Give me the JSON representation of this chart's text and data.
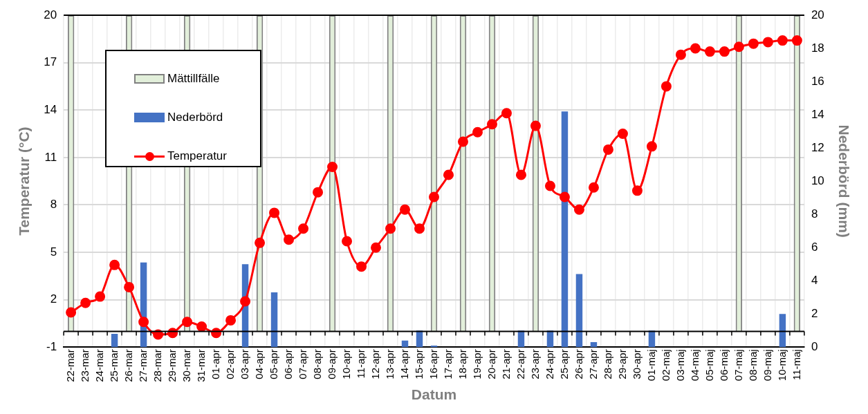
{
  "chart_data": {
    "type": "bar",
    "xlabel": "Datum",
    "ylabel": "Temperatur (°C)",
    "y2label": "Nederbörd (mm)",
    "categories": [
      "22-mar",
      "23-mar",
      "24-mar",
      "25-mar",
      "26-mar",
      "27-mar",
      "28-mar",
      "29-mar",
      "30-mar",
      "31-mar",
      "01-apr",
      "02-apr",
      "03-apr",
      "04-apr",
      "05-apr",
      "06-apr",
      "07-apr",
      "08-apr",
      "09-apr",
      "10-apr",
      "11-apr",
      "12-apr",
      "13-apr",
      "14-apr",
      "15-apr",
      "16-apr",
      "17-apr",
      "18-apr",
      "19-apr",
      "20-apr",
      "21-apr",
      "22-apr",
      "23-apr",
      "24-apr",
      "25-apr",
      "26-apr",
      "27-apr",
      "28-apr",
      "29-apr",
      "30-apr",
      "01-maj",
      "02-maj",
      "03-maj",
      "04-maj",
      "05-maj",
      "06-maj",
      "07-maj",
      "08-maj",
      "09-maj",
      "10-maj",
      "11-maj"
    ],
    "series": [
      {
        "name": "Mättillfälle",
        "color": "#e2efda",
        "values": [
          20,
          null,
          null,
          null,
          20,
          null,
          null,
          null,
          20,
          null,
          null,
          null,
          null,
          20,
          null,
          null,
          null,
          null,
          20,
          null,
          null,
          null,
          20,
          null,
          null,
          20,
          null,
          20,
          null,
          20,
          null,
          null,
          20,
          null,
          null,
          null,
          null,
          null,
          null,
          null,
          null,
          null,
          null,
          null,
          null,
          null,
          20,
          null,
          null,
          null,
          20
        ]
      },
      {
        "name": "Nederbörd",
        "axis": "y2",
        "color": "#4472c4",
        "values": [
          0,
          0,
          0,
          0.8,
          0,
          5.1,
          0,
          0,
          0,
          0,
          0,
          0,
          5.0,
          0,
          3.3,
          0,
          0,
          0,
          0,
          0,
          0,
          0,
          0,
          0.4,
          1.0,
          0.1,
          0,
          0,
          0,
          0,
          0,
          1.0,
          0,
          1.0,
          14.2,
          4.4,
          0.3,
          0,
          0,
          0,
          1.0,
          0,
          0,
          0,
          0,
          0,
          0,
          0,
          0,
          2.0,
          0
        ]
      },
      {
        "name": "Temperatur",
        "type": "line",
        "color": "#ff0000",
        "values": [
          1.2,
          1.8,
          2.2,
          4.2,
          2.8,
          0.6,
          -0.2,
          -0.1,
          0.6,
          0.3,
          -0.1,
          0.7,
          1.9,
          5.6,
          7.5,
          5.8,
          6.5,
          8.8,
          10.4,
          5.7,
          4.1,
          5.3,
          6.5,
          7.7,
          6.5,
          8.5,
          9.9,
          12.0,
          12.6,
          13.1,
          13.8,
          9.9,
          13.0,
          9.2,
          8.5,
          7.7,
          9.1,
          11.5,
          12.5,
          8.9,
          11.7,
          15.5,
          17.5,
          17.9,
          17.7,
          17.7,
          18.0,
          18.2,
          18.3,
          18.4,
          18.4
        ]
      }
    ],
    "ylim": [
      -1,
      20
    ],
    "yticks": [
      -1,
      2,
      5,
      8,
      11,
      14,
      17,
      20
    ],
    "y2lim": [
      0,
      20
    ],
    "y2ticks": [
      0,
      2,
      4,
      6,
      8,
      10,
      12,
      14,
      16,
      18,
      20
    ],
    "ref_lines": [
      {
        "axis": "y",
        "value": 0,
        "color": "#000000"
      }
    ],
    "grid": true,
    "legend": "top left",
    "marker": "circle",
    "line_style": "solid"
  }
}
